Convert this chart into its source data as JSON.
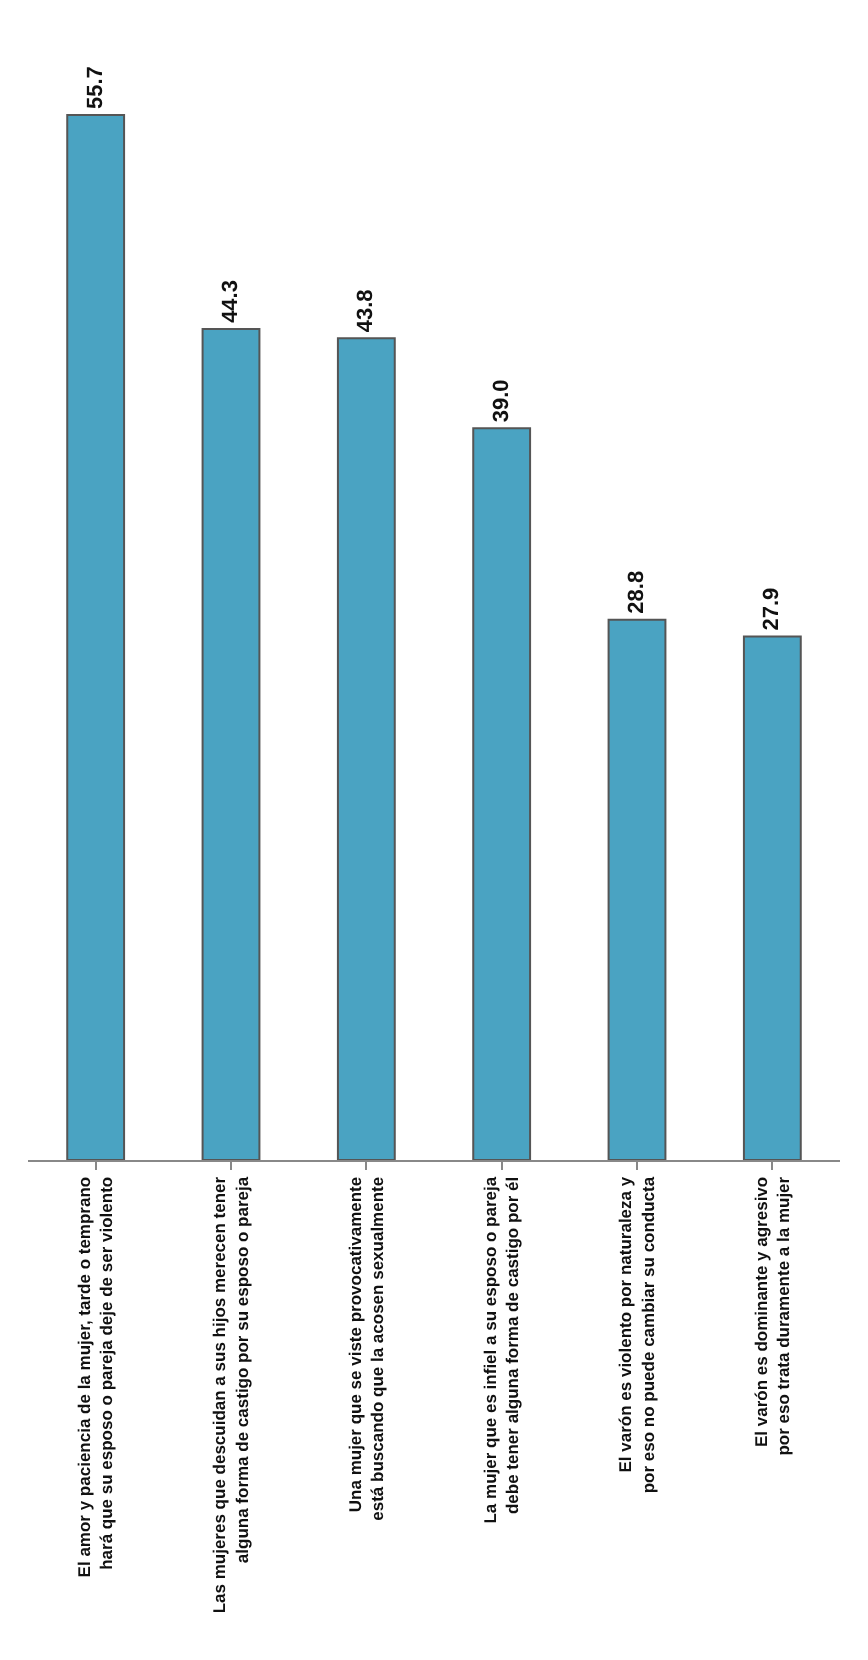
{
  "chart_data": {
    "type": "bar",
    "categories": [
      "El amor y paciencia de la mujer, tarde o temprano hará que su esposo o pareja deje de ser violento",
      "Las mujeres que descuidan a sus hijos merecen tener alguna forma de castigo por su esposo o pareja",
      "Una mujer que se viste provocativamente está buscando que la acosen sexualmente",
      "La mujer que es infiel a su esposo o pareja debe tener alguna forma de castigo por él",
      "El varón es violento por naturaleza y por eso no puede cambiar su conducta",
      "El varón es dominante y agresivo por eso trata duramente a la mujer"
    ],
    "values": [
      55.7,
      44.3,
      43.8,
      39.0,
      28.8,
      27.9
    ],
    "value_labels": [
      "55.7",
      "44.3",
      "43.8",
      "39.0",
      "28.8",
      "27.9"
    ],
    "color": "#4aa3c2",
    "grid": false,
    "legend": false
  }
}
